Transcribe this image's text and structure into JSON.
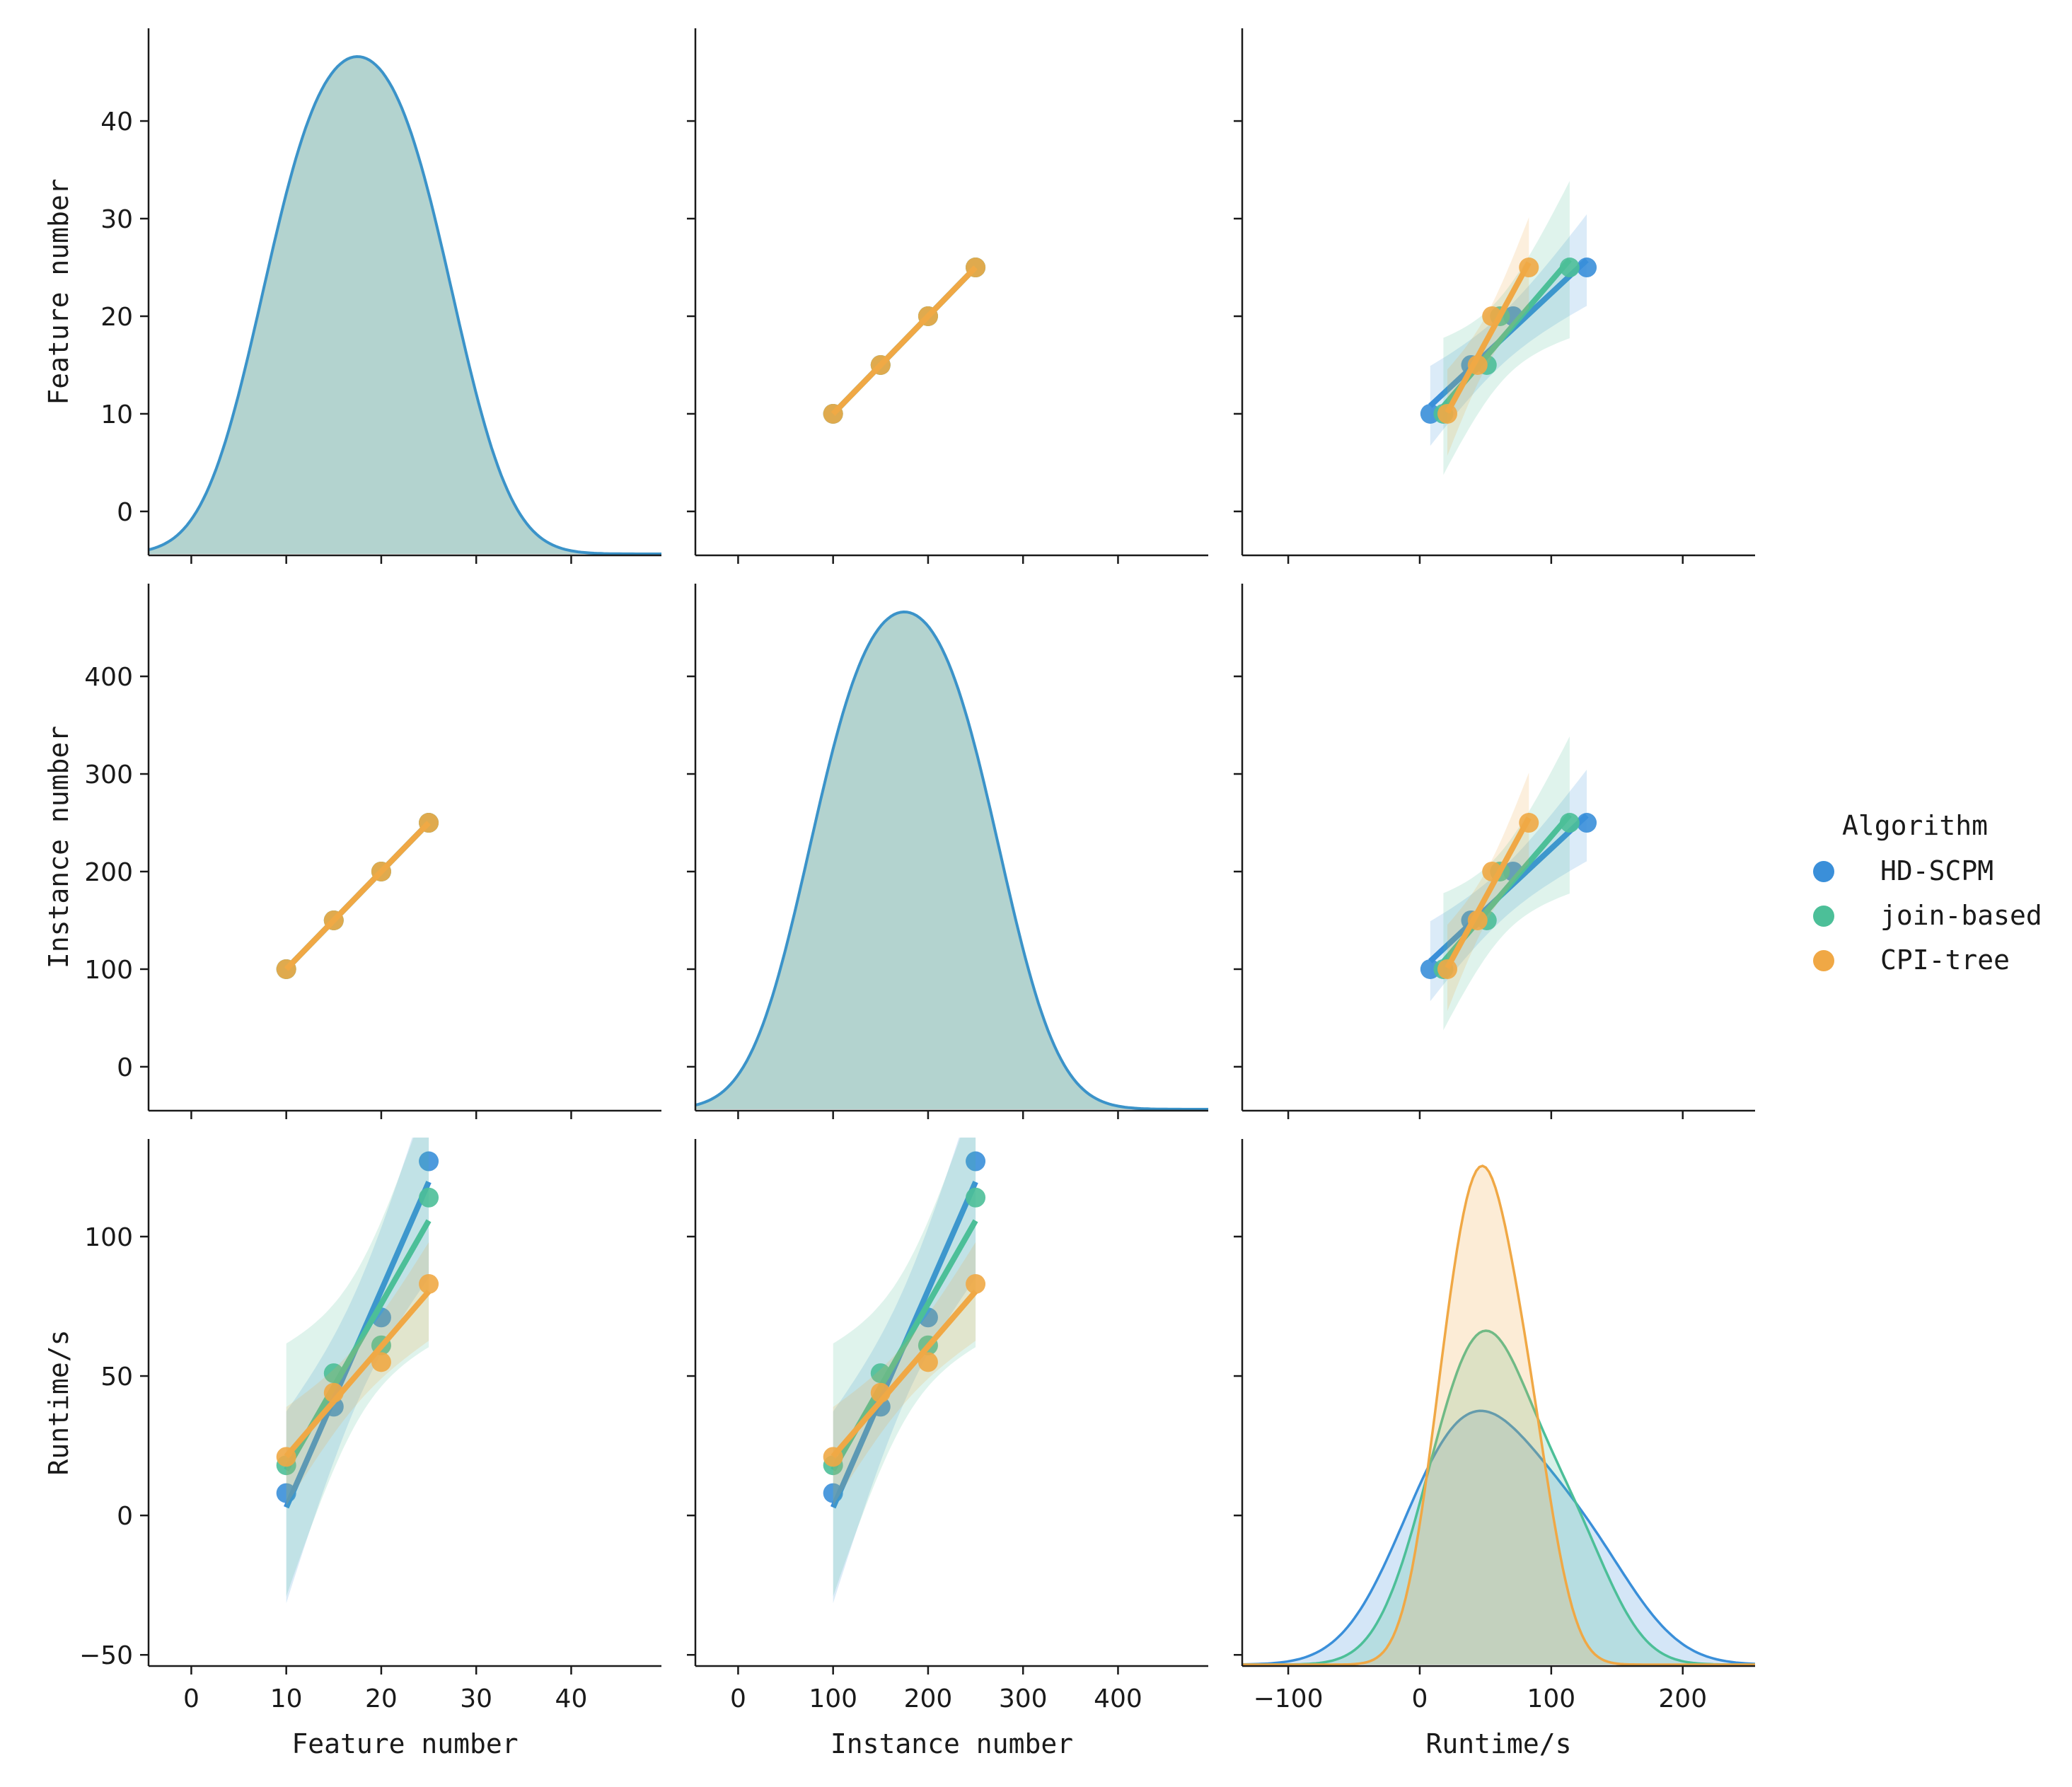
{
  "chart_data": {
    "type": "pairplot",
    "variables": [
      "Feature number",
      "Instance number",
      "Runtime/s"
    ],
    "hue_title": "Algorithm",
    "series": [
      {
        "name": "HD-SCPM",
        "color": "#3a8fd9",
        "feature": [
          10,
          15,
          20,
          25
        ],
        "instance": [
          100,
          150,
          200,
          250
        ],
        "runtime": [
          8,
          39,
          71,
          127
        ]
      },
      {
        "name": "join-based",
        "color": "#4cbf98",
        "feature": [
          10,
          15,
          20,
          25
        ],
        "instance": [
          100,
          150,
          200,
          250
        ],
        "runtime": [
          18,
          51,
          61,
          114
        ]
      },
      {
        "name": "CPI-tree",
        "color": "#f0a845",
        "feature": [
          10,
          15,
          20,
          25
        ],
        "instance": [
          100,
          150,
          200,
          250
        ],
        "runtime": [
          21,
          44,
          55,
          83
        ]
      }
    ],
    "axes": {
      "Feature number": {
        "range": [
          -4.5,
          49.5
        ],
        "ticks": [
          0,
          10,
          20,
          30,
          40
        ]
      },
      "Instance number": {
        "range": [
          -45,
          495
        ],
        "ticks": [
          0,
          100,
          200,
          300,
          400
        ]
      },
      "Runtime/s": {
        "range": [
          -54,
          135
        ],
        "ticks": [
          -50,
          0,
          50,
          100
        ],
        "x_range": [
          -135,
          255
        ],
        "x_ticks": [
          -100,
          0,
          100,
          200
        ]
      }
    },
    "ylabels": [
      "Feature number",
      "Instance number",
      "Runtime/s"
    ],
    "xlabels": [
      "Feature number",
      "Instance number",
      "Runtime/s"
    ],
    "diag_fill": "#b3d3cf",
    "diag_line": "#3b93c9",
    "legend_position": "right"
  }
}
